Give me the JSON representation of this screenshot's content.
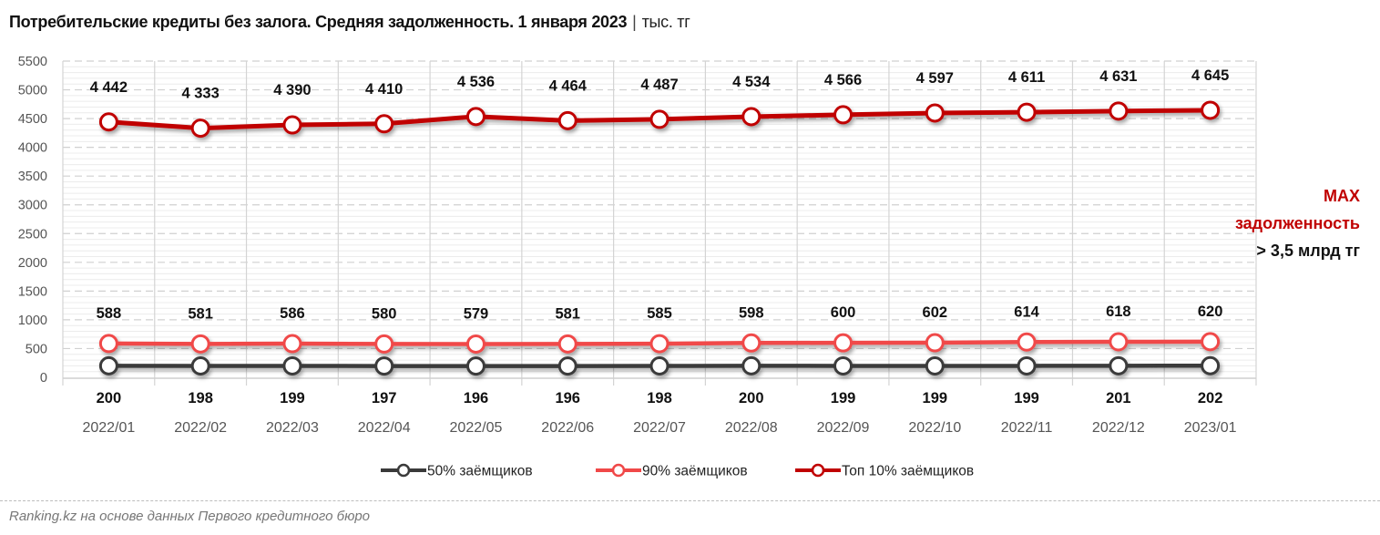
{
  "header": {
    "title": "Потребительские кредиты без залога. Средняя задолженность. 1 января 2023",
    "separator": "|",
    "unit": "тыс. тг"
  },
  "annotation": {
    "line1": "MAX",
    "line2": "задолженность",
    "line3": "> 3,5 млрд тг"
  },
  "footer": {
    "source": "Ranking.kz на основе данных Первого кредитного бюро"
  },
  "colors": {
    "top10": "#C00000",
    "p90": "#F04848",
    "p50": "#3A3A3A",
    "grid_major": "#d0d0d0",
    "grid_minor": "#ececec",
    "axis_text": "#555555"
  },
  "chart_data": {
    "type": "line",
    "title": "Потребительские кредиты без залога. Средняя задолженность. 1 января 2023 | тыс. тг",
    "xlabel": "",
    "ylabel": "тыс. тг",
    "ylim": [
      0,
      5500
    ],
    "yticks": [
      0,
      500,
      1000,
      1500,
      2000,
      2500,
      3000,
      3500,
      4000,
      4500,
      5000,
      5500
    ],
    "grid": true,
    "legend_position": "bottom",
    "categories": [
      "2022/01",
      "2022/02",
      "2022/03",
      "2022/04",
      "2022/05",
      "2022/06",
      "2022/07",
      "2022/08",
      "2022/09",
      "2022/10",
      "2022/11",
      "2022/12",
      "2023/01"
    ],
    "series": [
      {
        "name": "50% заёмщиков",
        "key": "p50",
        "values": [
          200,
          198,
          199,
          197,
          196,
          196,
          198,
          200,
          199,
          199,
          199,
          201,
          202
        ],
        "labels": [
          "200",
          "198",
          "199",
          "197",
          "196",
          "196",
          "198",
          "200",
          "199",
          "199",
          "199",
          "201",
          "202"
        ]
      },
      {
        "name": "90% заёмщиков",
        "key": "p90",
        "values": [
          588,
          581,
          586,
          580,
          579,
          581,
          585,
          598,
          600,
          602,
          614,
          618,
          620
        ],
        "labels": [
          "588",
          "581",
          "586",
          "580",
          "579",
          "581",
          "585",
          "598",
          "600",
          "602",
          "614",
          "618",
          "620"
        ]
      },
      {
        "name": "Топ 10% заёмщиков",
        "key": "top10",
        "values": [
          4442,
          4333,
          4390,
          4410,
          4536,
          4464,
          4487,
          4534,
          4566,
          4597,
          4611,
          4631,
          4645
        ],
        "labels": [
          "4 442",
          "4 333",
          "4 390",
          "4 410",
          "4 536",
          "4 464",
          "4 487",
          "4 534",
          "4 566",
          "4 597",
          "4 611",
          "4 631",
          "4 645"
        ]
      }
    ],
    "annotations": [
      "MAX задолженность > 3,5 млрд тг"
    ]
  }
}
